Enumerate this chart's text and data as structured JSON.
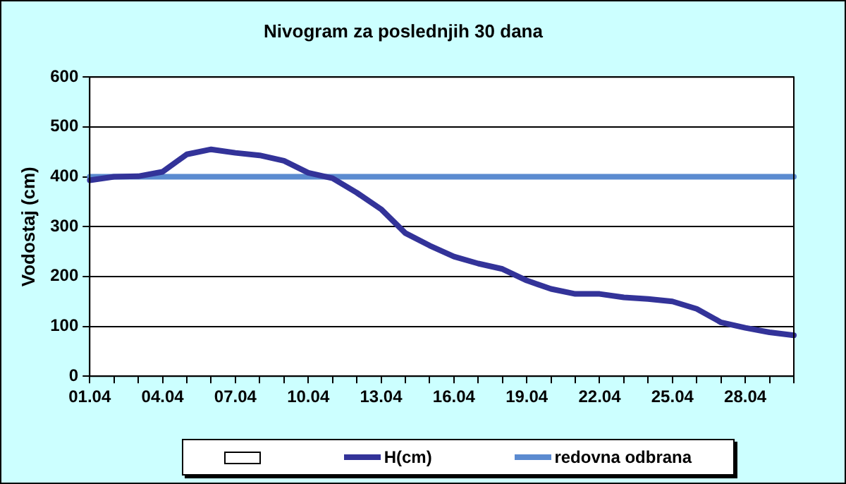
{
  "chart_data": {
    "type": "line",
    "title": "Nivogram za poslednjih 30 dana",
    "ylabel": "Vodostaj (cm)",
    "categories": [
      "01.04",
      null,
      null,
      "04.04",
      null,
      null,
      "07.04",
      null,
      null,
      "10.04",
      null,
      null,
      "13.04",
      null,
      null,
      "16.04",
      null,
      null,
      "19.04",
      null,
      null,
      "22.04",
      null,
      null,
      "25.04",
      null,
      null,
      "28.04",
      null,
      null
    ],
    "series": [
      {
        "name": "H(cm)",
        "color": "#333399",
        "values": [
          393,
          400,
          401,
          410,
          445,
          455,
          448,
          443,
          432,
          408,
          397,
          368,
          335,
          287,
          262,
          240,
          226,
          215,
          192,
          175,
          165,
          165,
          158,
          155,
          150,
          135,
          108,
          97,
          88,
          82
        ]
      },
      {
        "name": "redovna odbrana",
        "color": "#5b8bd0",
        "values": [
          400,
          400,
          400,
          400,
          400,
          400,
          400,
          400,
          400,
          400,
          400,
          400,
          400,
          400,
          400,
          400,
          400,
          400,
          400,
          400,
          400,
          400,
          400,
          400,
          400,
          400,
          400,
          400,
          400,
          400
        ]
      }
    ],
    "ylim": [
      0,
      600
    ],
    "yticks": [
      0,
      100,
      200,
      300,
      400,
      500,
      600
    ],
    "grid": "y",
    "legend": "bottom",
    "marker": "none",
    "line_style": "solid"
  }
}
